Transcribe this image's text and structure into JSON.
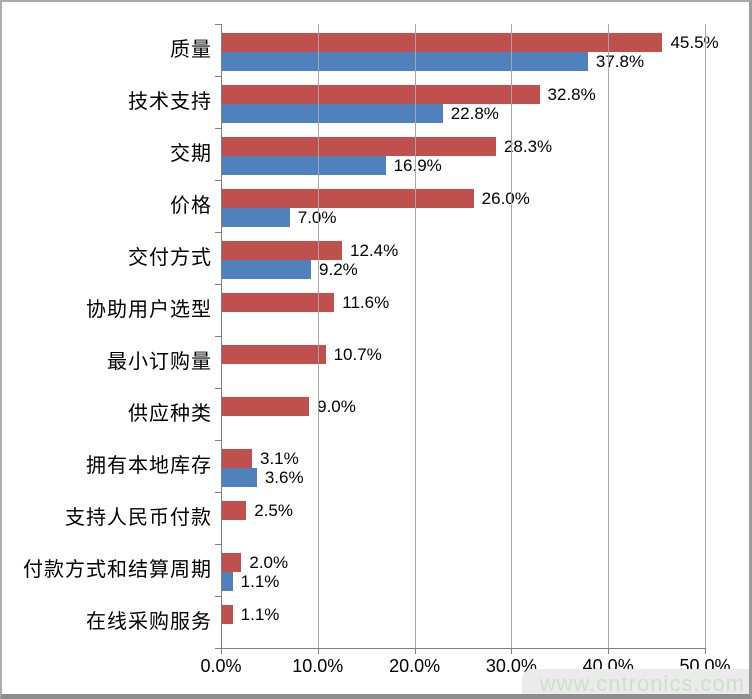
{
  "chart_data": {
    "type": "bar",
    "orientation": "horizontal",
    "title": "",
    "categories": [
      "质量",
      "技术支持",
      "交期",
      "价格",
      "交付方式",
      "协助用户选型",
      "最小订购量",
      "供应种类",
      "拥有本地库存",
      "支持人民币付款",
      "付款方式和结算周期",
      "在线采购服务"
    ],
    "series": [
      {
        "key": "red",
        "color": "#C0504D",
        "values": [
          45.5,
          32.8,
          28.3,
          26.0,
          12.4,
          11.6,
          10.7,
          9.0,
          3.1,
          2.5,
          2.0,
          1.1
        ],
        "labels": [
          "45.5%",
          "32.8%",
          "28.3%",
          "26.0%",
          "12.4%",
          "11.6%",
          "10.7%",
          "9.0%",
          "3.1%",
          "2.5%",
          "2.0%",
          "1.1%"
        ]
      },
      {
        "key": "blue",
        "color": "#4F81BD",
        "values": [
          37.8,
          22.8,
          16.9,
          7.0,
          9.2,
          null,
          null,
          null,
          3.6,
          null,
          1.1,
          null
        ],
        "labels": [
          "37.8%",
          "22.8%",
          "16.9%",
          "7.0%",
          "9.2%",
          null,
          null,
          null,
          "3.6%",
          null,
          "1.1%",
          null
        ]
      }
    ],
    "x_ticks": [
      "0.0%",
      "10.0%",
      "20.0%",
      "30.0%",
      "40.0%",
      "50.0%"
    ],
    "x_tick_values": [
      0,
      10,
      20,
      30,
      40,
      50
    ],
    "xlim": [
      0,
      50
    ],
    "grid": true,
    "legend": null
  },
  "watermark": {
    "text": "www.cntronics.com",
    "color": "#c9e2c6"
  },
  "colors": {
    "grid": "#a6a6a6",
    "axis": "#808080",
    "text": "#000000"
  }
}
